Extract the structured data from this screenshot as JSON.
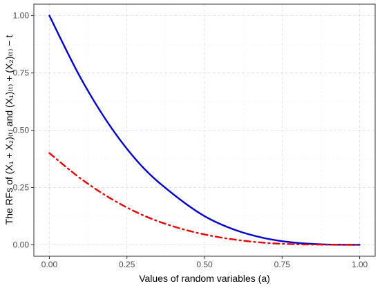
{
  "chart_data": {
    "type": "line",
    "xlabel": "Values of random variables (a)",
    "ylabel": "The RFs of (X₁ + X₂)₍ₜ₎ and (X₁)₍ₜ₎ + (X₂)₍ₜ₎ − t",
    "xlim": [
      -0.05,
      1.05
    ],
    "ylim": [
      -0.05,
      1.05
    ],
    "x_ticks": [
      0.0,
      0.25,
      0.5,
      0.75,
      1.0
    ],
    "y_ticks": [
      0.0,
      0.25,
      0.5,
      0.75,
      1.0
    ],
    "x_tick_labels": [
      "0.00",
      "0.25",
      "0.50",
      "0.75",
      "1.00"
    ],
    "y_tick_labels": [
      "0.00",
      "0.25",
      "0.50",
      "0.75",
      "1.00"
    ],
    "grid": true,
    "x": [
      0.0,
      0.1,
      0.2,
      0.3,
      0.4,
      0.5,
      0.6,
      0.7,
      0.8,
      0.9,
      1.0
    ],
    "series": [
      {
        "color": "#0000cc",
        "style": "solid",
        "values": [
          1.0,
          0.73,
          0.51,
          0.34,
          0.22,
          0.125,
          0.064,
          0.027,
          0.008,
          0.001,
          0.0
        ]
      },
      {
        "color": "#e60000",
        "style": "dash-dot",
        "values": [
          0.4,
          0.29,
          0.2,
          0.13,
          0.08,
          0.045,
          0.022,
          0.008,
          0.002,
          0.0003,
          0.0
        ]
      }
    ]
  }
}
